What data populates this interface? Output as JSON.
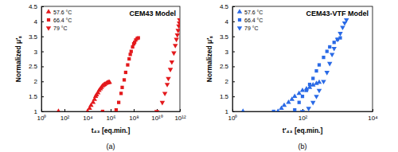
{
  "chart_data": [
    {
      "type": "scatter",
      "title": "CEM43 Model",
      "x_label": "t₄₃ [eq.min.]",
      "y_label": "Normalized μ′ₛ",
      "caption": "(a)",
      "log": "x",
      "grid": false,
      "legend": "upper left",
      "xlim": [
        1,
        1000000000000
      ],
      "xticks": [
        {
          "value": 1,
          "label": "10⁰"
        },
        {
          "value": 100,
          "label": "10²"
        },
        {
          "value": 10000,
          "label": "10⁴"
        },
        {
          "value": 1000000,
          "label": "10⁶"
        },
        {
          "value": 100000000,
          "label": "10⁸"
        },
        {
          "value": 10000000000,
          "label": "10¹⁰"
        },
        {
          "value": 1000000000000,
          "label": "10¹²"
        }
      ],
      "ylim": [
        1,
        4.5
      ],
      "yticks": [
        1,
        1.5,
        2,
        2.5,
        3,
        3.5,
        4,
        4.5
      ],
      "series": [
        {
          "name": "57.6 °C",
          "color": "#e3191c",
          "marker": "triangle-up",
          "x": [
            30,
            10000,
            15000,
            20000,
            30000,
            40000,
            50000,
            60000,
            80000,
            100000,
            130000,
            160000,
            200000,
            250000,
            300000,
            400000,
            500000,
            600000,
            700000,
            800000
          ],
          "values": [
            1,
            1.0,
            1.1,
            1.2,
            1.3,
            1.4,
            1.5,
            1.55,
            1.62,
            1.7,
            1.75,
            1.8,
            1.85,
            1.88,
            1.9,
            1.93,
            1.95,
            1.96,
            1.97,
            1.97
          ]
        },
        {
          "name": "66.4 °C",
          "color": "#e3191c",
          "marker": "square",
          "x": [
            200000,
            3000000,
            5000000,
            8000000,
            10000000,
            15000000,
            20000000,
            30000000,
            40000000,
            50000000,
            60000000,
            80000000,
            100000000,
            120000000,
            150000000,
            200000000,
            250000000
          ],
          "values": [
            1,
            1.05,
            1.3,
            1.6,
            1.8,
            2.05,
            2.3,
            2.55,
            2.75,
            2.9,
            3.0,
            3.15,
            3.25,
            3.3,
            3.38,
            3.43,
            3.45
          ]
        },
        {
          "name": "79 °C",
          "color": "#e3191c",
          "marker": "triangle-down",
          "x": [
            10000000000,
            30000000000,
            50000000000,
            80000000000,
            100000000000,
            150000000000,
            200000000000,
            300000000000,
            400000000000,
            500000000000,
            600000000000,
            700000000000,
            800000000000,
            900000000000,
            950000000000
          ],
          "values": [
            1.0,
            1.3,
            1.6,
            1.9,
            2.1,
            2.4,
            2.65,
            2.95,
            3.2,
            3.4,
            3.55,
            3.7,
            3.85,
            3.95,
            4.05
          ]
        }
      ]
    },
    {
      "type": "scatter",
      "title": "CEM43-VTF Model",
      "x_label": "t′₄₃ [eq.min.]",
      "y_label": "Normalized μ′ₛ",
      "caption": "(b)",
      "log": "x",
      "grid": false,
      "legend": "upper left",
      "xlim": [
        1,
        10000
      ],
      "xticks": [
        {
          "value": 1,
          "label": "10⁰"
        },
        {
          "value": 100,
          "label": "10²"
        },
        {
          "value": 10000,
          "label": "10⁴"
        }
      ],
      "ylim": [
        1,
        4.5
      ],
      "yticks": [
        1,
        1.5,
        2,
        2.5,
        3,
        3.5,
        4,
        4.5
      ],
      "series": [
        {
          "name": "57.6 °C",
          "color": "#2a6ae6",
          "marker": "triangle-up",
          "x": [
            2,
            20,
            25,
            30,
            40,
            50,
            60,
            80,
            100,
            130,
            160,
            200,
            250,
            300
          ],
          "values": [
            1,
            1.0,
            1.1,
            1.2,
            1.3,
            1.4,
            1.5,
            1.6,
            1.7,
            1.75,
            1.8,
            1.88,
            1.93,
            1.97
          ]
        },
        {
          "name": "66.4 °C",
          "color": "#2a6ae6",
          "marker": "square",
          "x": [
            15,
            60,
            80,
            100,
            130,
            160,
            200,
            250,
            300,
            400,
            500,
            600,
            800,
            1000,
            1200
          ],
          "values": [
            1,
            1.05,
            1.3,
            1.5,
            1.7,
            1.9,
            2.1,
            2.35,
            2.55,
            2.8,
            3.0,
            3.15,
            3.3,
            3.4,
            3.45
          ]
        },
        {
          "name": "79 °C",
          "color": "#2a6ae6",
          "marker": "triangle-down",
          "x": [
            100,
            150,
            200,
            250,
            300,
            400,
            500,
            600,
            700,
            800,
            1000,
            1200,
            1400,
            1600,
            1800
          ],
          "values": [
            1.0,
            1.1,
            1.3,
            1.5,
            1.7,
            2.0,
            2.3,
            2.6,
            2.9,
            3.1,
            3.4,
            3.6,
            3.8,
            3.95,
            4.05
          ]
        }
      ]
    }
  ]
}
